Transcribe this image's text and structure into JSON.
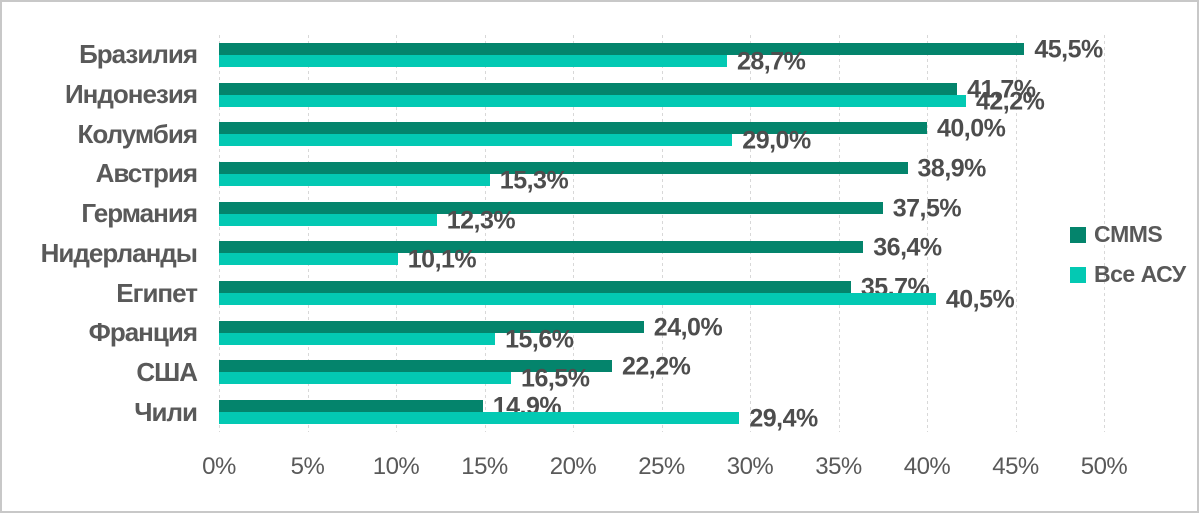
{
  "chart_data": {
    "type": "bar",
    "orientation": "horizontal",
    "title": "",
    "categories": [
      "Бразилия",
      "Индонезия",
      "Колумбия",
      "Австрия",
      "Германия",
      "Нидерланды",
      "Египет",
      "Франция",
      "США",
      "Чили"
    ],
    "series": [
      {
        "name": "CMMS",
        "color": "#04846C",
        "values": [
          45.5,
          41.7,
          40.0,
          38.9,
          37.5,
          36.4,
          35.7,
          24.0,
          22.2,
          14.9
        ],
        "labels": [
          "45,5%",
          "41,7%",
          "40,0%",
          "38,9%",
          "37,5%",
          "36,4%",
          "35,7%",
          "24,0%",
          "22,2%",
          "14,9%"
        ]
      },
      {
        "name": "Все АСУ",
        "color": "#03C9B3",
        "values": [
          28.7,
          42.2,
          29.0,
          15.3,
          12.3,
          10.1,
          40.5,
          15.6,
          16.5,
          29.4
        ],
        "labels": [
          "28,7%",
          "42,2%",
          "29,0%",
          "15,3%",
          "12,3%",
          "10,1%",
          "40,5%",
          "15,6%",
          "16,5%",
          "29,4%"
        ]
      }
    ],
    "x_axis": {
      "min": 0,
      "max": 50,
      "step": 5,
      "tick_labels": [
        "0%",
        "5%",
        "10%",
        "15%",
        "20%",
        "25%",
        "30%",
        "35%",
        "40%",
        "45%",
        "50%"
      ]
    },
    "legend": {
      "position": "right",
      "entries": [
        "CMMS",
        "Все АСУ"
      ]
    },
    "grid": true,
    "value_format": "percent-comma-decimal"
  },
  "colors": {
    "series_cmms": "#04846C",
    "series_vse_asu": "#03C9B3",
    "gridline": "#d8d8d8",
    "frame_border": "#c8c8c8",
    "text": "#595959",
    "background": "#ffffff"
  }
}
